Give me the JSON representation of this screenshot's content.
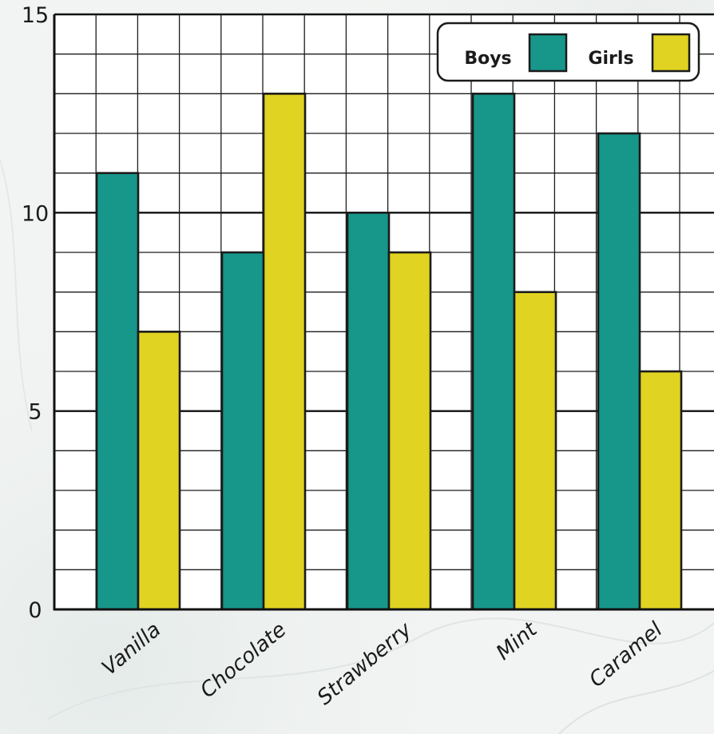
{
  "chart_data": {
    "type": "bar",
    "categories": [
      "Vanilla",
      "Chocolate",
      "Strawberry",
      "Mint",
      "Caramel"
    ],
    "series": [
      {
        "name": "Boys",
        "values": [
          11,
          9,
          10,
          13,
          12
        ],
        "color": "#17968a"
      },
      {
        "name": "Girls",
        "values": [
          7,
          13,
          9,
          8,
          6
        ],
        "color": "#e0d321"
      }
    ],
    "title": "",
    "xlabel": "",
    "ylabel": "",
    "ylim": [
      0,
      15
    ],
    "yticks": [
      0,
      5,
      10,
      15
    ],
    "grid": true,
    "legend_position": "top-right"
  },
  "colors": {
    "grid_minor": "#1c1c1c",
    "grid_major": "#111111",
    "plot_background": "#ffffff",
    "page_background": "#f2f4f3"
  }
}
